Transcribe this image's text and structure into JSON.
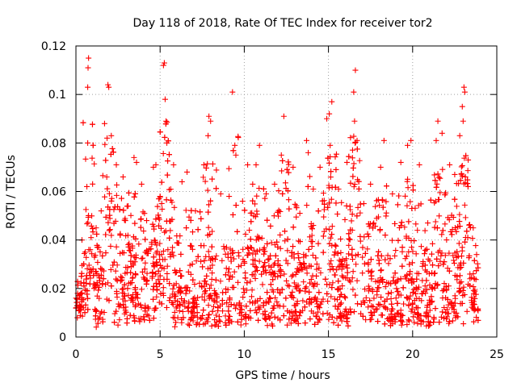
{
  "chart_data": {
    "type": "scatter",
    "title": "Day 118 of 2018, Rate Of TEC Index for receiver tor2",
    "xlabel": "GPS time / hours",
    "ylabel": "ROTI / TECUs",
    "xlim": [
      0,
      25
    ],
    "ylim": [
      0,
      0.12
    ],
    "grid": true,
    "xticks": [
      {
        "value": 0,
        "label": "0"
      },
      {
        "value": 5,
        "label": "5"
      },
      {
        "value": 10,
        "label": "10"
      },
      {
        "value": 15,
        "label": "15"
      },
      {
        "value": 20,
        "label": "20"
      },
      {
        "value": 25,
        "label": "25"
      }
    ],
    "yticks": [
      {
        "value": 0,
        "label": "0"
      },
      {
        "value": 0.02,
        "label": "0.02"
      },
      {
        "value": 0.04,
        "label": "0.04"
      },
      {
        "value": 0.06,
        "label": "0.06"
      },
      {
        "value": 0.08,
        "label": "0.08"
      },
      {
        "value": 0.1,
        "label": "0.1"
      },
      {
        "value": 0.12,
        "label": "0.12"
      }
    ],
    "marker": "plus",
    "color": "#ff0000",
    "series": [
      {
        "name": "ROTI",
        "points": [
          [
            0.1,
            0.018
          ],
          [
            0.3,
            0.012
          ],
          [
            0.55,
            0.035
          ],
          [
            0.65,
            0.062
          ],
          [
            0.7,
            0.103
          ],
          [
            0.72,
            0.111
          ],
          [
            0.75,
            0.115
          ],
          [
            0.7,
            0.08
          ],
          [
            0.9,
            0.041
          ],
          [
            1.2,
            0.045
          ],
          [
            1.5,
            0.052
          ],
          [
            1.9,
            0.104
          ],
          [
            1.95,
            0.103
          ],
          [
            1.7,
            0.088
          ],
          [
            1.85,
            0.082
          ],
          [
            2.1,
            0.083
          ],
          [
            2.4,
            0.071
          ],
          [
            2.8,
            0.066
          ],
          [
            3.1,
            0.054
          ],
          [
            3.45,
            0.074
          ],
          [
            3.6,
            0.072
          ],
          [
            3.9,
            0.063
          ],
          [
            4.2,
            0.048
          ],
          [
            4.6,
            0.07
          ],
          [
            4.75,
            0.071
          ],
          [
            5.0,
            0.058
          ],
          [
            5.2,
            0.112
          ],
          [
            5.25,
            0.113
          ],
          [
            5.3,
            0.098
          ],
          [
            5.35,
            0.089
          ],
          [
            5.4,
            0.08
          ],
          [
            5.8,
            0.071
          ],
          [
            6.3,
            0.064
          ],
          [
            6.6,
            0.068
          ],
          [
            7.1,
            0.052
          ],
          [
            7.6,
            0.071
          ],
          [
            7.9,
            0.091
          ],
          [
            8.0,
            0.089
          ],
          [
            7.85,
            0.083
          ],
          [
            8.6,
            0.059
          ],
          [
            9.1,
            0.058
          ],
          [
            9.3,
            0.101
          ],
          [
            9.5,
            0.075
          ],
          [
            9.9,
            0.056
          ],
          [
            10.2,
            0.071
          ],
          [
            10.5,
            0.063
          ],
          [
            10.7,
            0.071
          ],
          [
            10.9,
            0.079
          ],
          [
            11.3,
            0.059
          ],
          [
            11.8,
            0.063
          ],
          [
            12.2,
            0.075
          ],
          [
            12.35,
            0.091
          ],
          [
            12.9,
            0.07
          ],
          [
            13.3,
            0.051
          ],
          [
            13.7,
            0.081
          ],
          [
            13.8,
            0.076
          ],
          [
            14.1,
            0.061
          ],
          [
            14.5,
            0.07
          ],
          [
            14.9,
            0.09
          ],
          [
            15.05,
            0.092
          ],
          [
            15.2,
            0.097
          ],
          [
            15.1,
            0.079
          ],
          [
            15.6,
            0.061
          ],
          [
            16.1,
            0.072
          ],
          [
            16.6,
            0.11
          ],
          [
            16.5,
            0.101
          ],
          [
            16.55,
            0.089
          ],
          [
            16.7,
            0.081
          ],
          [
            17.1,
            0.055
          ],
          [
            17.5,
            0.063
          ],
          [
            18.1,
            0.07
          ],
          [
            18.3,
            0.081
          ],
          [
            18.8,
            0.059
          ],
          [
            19.3,
            0.072
          ],
          [
            19.7,
            0.079
          ],
          [
            19.9,
            0.081
          ],
          [
            20.4,
            0.071
          ],
          [
            20.9,
            0.047
          ],
          [
            21.4,
            0.081
          ],
          [
            21.5,
            0.089
          ],
          [
            21.75,
            0.084
          ],
          [
            22.2,
            0.071
          ],
          [
            22.5,
            0.067
          ],
          [
            22.8,
            0.083
          ],
          [
            22.95,
            0.095
          ],
          [
            23.05,
            0.103
          ],
          [
            23.1,
            0.101
          ],
          [
            23.0,
            0.089
          ],
          [
            23.3,
            0.073
          ],
          [
            23.6,
            0.045
          ],
          [
            23.8,
            0.034
          ]
        ]
      }
    ]
  }
}
